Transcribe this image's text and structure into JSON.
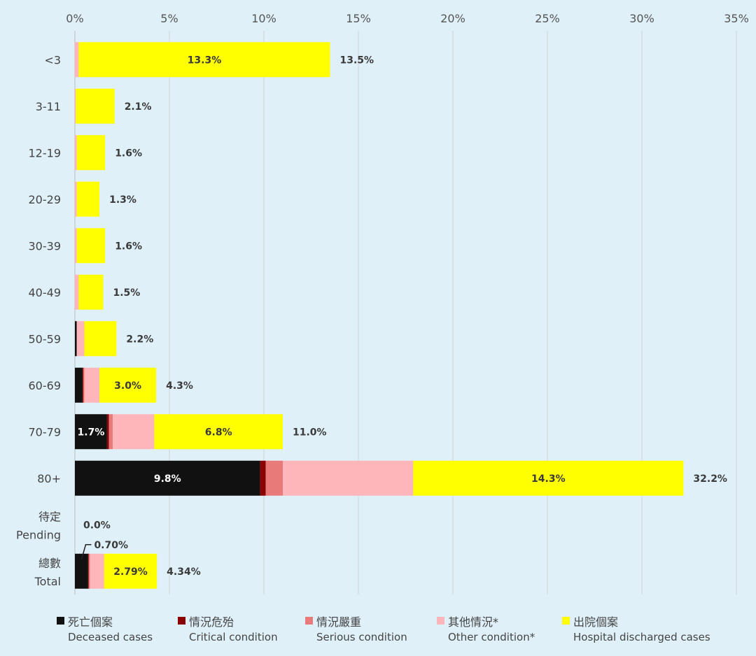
{
  "chart_data": {
    "type": "bar",
    "orientation": "horizontal",
    "stacked": true,
    "xlim": [
      0,
      35
    ],
    "x_ticks": [
      "0%",
      "5%",
      "10%",
      "15%",
      "20%",
      "25%",
      "30%",
      "35%"
    ],
    "grid": true,
    "legend_position": "bottom",
    "categories": [
      {
        "zh": "",
        "en": "<3"
      },
      {
        "zh": "",
        "en": "3-11"
      },
      {
        "zh": "",
        "en": "12-19"
      },
      {
        "zh": "",
        "en": "20-29"
      },
      {
        "zh": "",
        "en": "30-39"
      },
      {
        "zh": "",
        "en": "40-49"
      },
      {
        "zh": "",
        "en": "50-59"
      },
      {
        "zh": "",
        "en": "60-69"
      },
      {
        "zh": "",
        "en": "70-79"
      },
      {
        "zh": "",
        "en": "80+"
      },
      {
        "zh": "待定",
        "en": "Pending"
      },
      {
        "zh": "總數",
        "en": "Total"
      }
    ],
    "series": [
      {
        "name_zh": "死亡個案",
        "name_en": "Deceased cases",
        "color": "#111111",
        "values": [
          0,
          0,
          0,
          0,
          0,
          0,
          0.1,
          0.4,
          1.7,
          9.8,
          0,
          0.7
        ],
        "labels": [
          "",
          "",
          "",
          "",
          "",
          "",
          "",
          "",
          "1.7%",
          "9.8%",
          "",
          "0.70%"
        ]
      },
      {
        "name_zh": "情況危殆",
        "name_en": "Critical condition",
        "color": "#8b0000",
        "values": [
          0,
          0,
          0,
          0,
          0,
          0,
          0,
          0.05,
          0.1,
          0.3,
          0,
          0.03
        ],
        "labels": [
          "",
          "",
          "",
          "",
          "",
          "",
          "",
          "",
          "",
          "",
          "",
          ""
        ]
      },
      {
        "name_zh": "情況嚴重",
        "name_en": "Serious condition",
        "color": "#e87a7a",
        "values": [
          0,
          0,
          0,
          0,
          0,
          0,
          0,
          0.05,
          0.2,
          0.9,
          0,
          0.07
        ],
        "labels": [
          "",
          "",
          "",
          "",
          "",
          "",
          "",
          "",
          "",
          "",
          "",
          ""
        ]
      },
      {
        "name_zh": "其他情況*",
        "name_en": "Other condition*",
        "color": "#ffb6bb",
        "values": [
          0.2,
          0.05,
          0.1,
          0.1,
          0.1,
          0.2,
          0.4,
          0.8,
          2.2,
          6.9,
          0,
          0.75
        ],
        "labels": [
          "",
          "",
          "",
          "",
          "",
          "",
          "",
          "",
          "",
          "",
          "",
          ""
        ]
      },
      {
        "name_zh": "出院個案",
        "name_en": "Hospital discharged cases",
        "color": "#ffff00",
        "values": [
          13.3,
          2.05,
          1.5,
          1.2,
          1.5,
          1.3,
          1.7,
          3.0,
          6.8,
          14.3,
          0,
          2.79
        ],
        "labels": [
          "13.3%",
          "",
          "",
          "",
          "",
          "",
          "",
          "3.0%",
          "6.8%",
          "14.3%",
          "",
          "2.79%"
        ]
      }
    ],
    "totals": [
      "13.5%",
      "2.1%",
      "1.6%",
      "1.3%",
      "1.6%",
      "1.5%",
      "2.2%",
      "4.3%",
      "11.0%",
      "32.2%",
      "0.0%",
      "4.34%"
    ]
  }
}
